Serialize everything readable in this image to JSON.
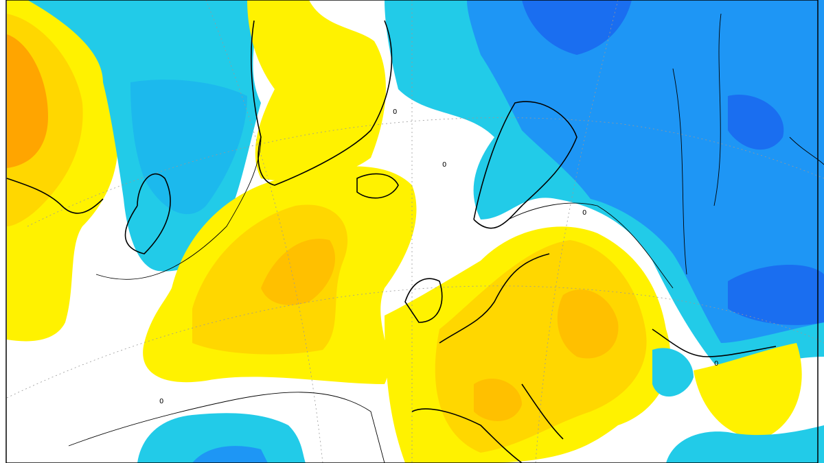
{
  "contour_labels": [
    "0",
    "0",
    "0",
    "0",
    "0"
  ]
}
